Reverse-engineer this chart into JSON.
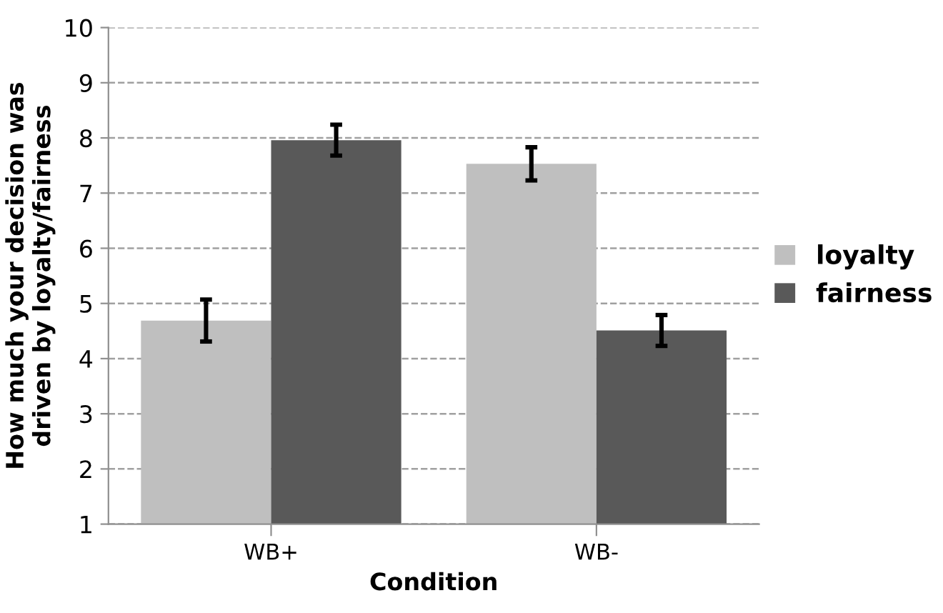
{
  "chart_data": {
    "type": "bar",
    "xlabel": "Condition",
    "ylabel": "How much your decision was\ndriven by loyalty/fairness",
    "categories": [
      "WB+",
      "WB-"
    ],
    "series": [
      {
        "name": "loyalty",
        "color": "#bfbfbf",
        "values": [
          4.69,
          7.53
        ],
        "errors": [
          0.38,
          0.3
        ]
      },
      {
        "name": "fairness",
        "color": "#595959",
        "values": [
          7.96,
          4.51
        ],
        "errors": [
          0.28,
          0.28
        ]
      }
    ],
    "ylim": [
      1,
      10
    ],
    "yticks": [
      1,
      2,
      3,
      4,
      5,
      6,
      7,
      8,
      9,
      10
    ],
    "grid": "y",
    "legend": "right"
  }
}
